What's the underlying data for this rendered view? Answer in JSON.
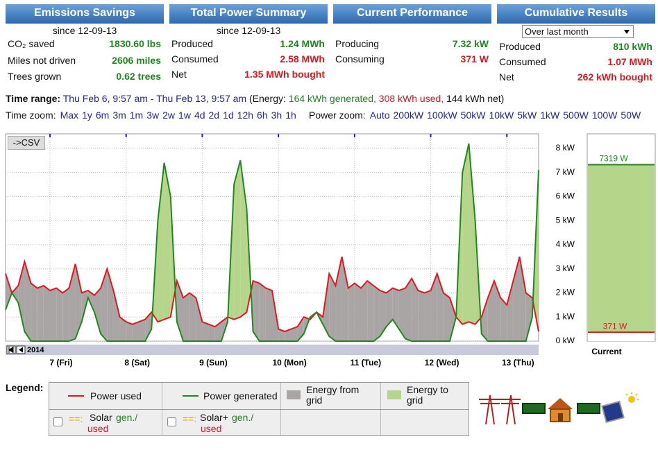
{
  "panels": [
    {
      "title": "Emissions Savings",
      "subtitle": "since 12-09-13",
      "rows": [
        {
          "label": "CO₂ saved",
          "value": "1830.60 lbs",
          "color": "#1a8a1a"
        },
        {
          "label": "Miles not driven",
          "value": "2606 miles",
          "color": "#1a8a1a"
        },
        {
          "label": "Trees grown",
          "value": "0.62 trees",
          "color": "#1a8a1a"
        }
      ]
    },
    {
      "title": "Total Power Summary",
      "subtitle": "since 12-09-13",
      "rows": [
        {
          "label": "Produced",
          "value": "1.24 MWh",
          "color": "#1a8a1a"
        },
        {
          "label": "Consumed",
          "value": "2.58 MWh",
          "color": "#e0141b"
        },
        {
          "label": "Net",
          "value": "1.35 MWh bought",
          "color": "#e0141b"
        }
      ]
    },
    {
      "title": "Current Performance",
      "rows": [
        {
          "label": "Producing",
          "value": "7.32 kW",
          "color": "#1a8a1a"
        },
        {
          "label": "Consuming",
          "value": "371 W",
          "color": "#e0141b"
        }
      ]
    },
    {
      "title": "Cumulative Results",
      "dropdown": "Over last month",
      "rows": [
        {
          "label": "Produced",
          "value": "810 kWh",
          "color": "#1a8a1a"
        },
        {
          "label": "Consumed",
          "value": "1.07 MWh",
          "color": "#e0141b"
        },
        {
          "label": "Net",
          "value": "262 kWh bought",
          "color": "#e0141b"
        }
      ]
    }
  ],
  "time_range": {
    "label": "Time range:",
    "range": "Thu Feb 6, 9:57 am - Thu Feb 13, 9:57 am",
    "energy_open": "(Energy:",
    "generated": "164 kWh generated,",
    "used": "308 kWh used,",
    "net": "144 kWh net)"
  },
  "time_zoom": {
    "label": "Time zoom:",
    "options": [
      "Max",
      "1y",
      "6m",
      "3m",
      "1m",
      "3w",
      "2w",
      "1w",
      "4d",
      "2d",
      "1d",
      "12h",
      "6h",
      "3h",
      "1h"
    ]
  },
  "power_zoom": {
    "label": "Power zoom:",
    "options": [
      "Auto",
      "200kW",
      "100kW",
      "50kW",
      "10kW",
      "5kW",
      "1kW",
      "500W",
      "100W",
      "50W"
    ]
  },
  "csv_button": "->CSV",
  "year": "2014",
  "chart_data": [
    {
      "type": "line",
      "categories": [
        null,
        null,
        null,
        null,
        null,
        null,
        null,
        "7 (Fri)",
        null,
        null,
        null,
        null,
        null,
        null,
        null,
        null,
        null,
        null,
        null,
        "8 (Sat)",
        null,
        null,
        null,
        null,
        null,
        null,
        null,
        null,
        null,
        null,
        null,
        "9 (Sun)",
        null,
        null,
        null,
        null,
        null,
        null,
        null,
        null,
        null,
        null,
        null,
        "10 (Mon)",
        null,
        null,
        null,
        null,
        null,
        null,
        null,
        null,
        null,
        null,
        null,
        "11 (Tue)",
        null,
        null,
        null,
        null,
        null,
        null,
        null,
        null,
        null,
        null,
        null,
        "12 (Wed)",
        null,
        null,
        null,
        null,
        null,
        null,
        null,
        null,
        null,
        null,
        null,
        "13 (Thu)",
        null,
        null,
        null,
        null,
        null
      ],
      "series": [
        {
          "name": "Power used",
          "color": "#e8141b",
          "values": [
            2.8,
            2.0,
            2.3,
            3.3,
            2.4,
            2.2,
            2.3,
            2.1,
            2.2,
            2.0,
            2.2,
            3.2,
            2.0,
            2.1,
            1.9,
            2.2,
            3.0,
            2.1,
            1.0,
            0.8,
            0.7,
            0.8,
            0.9,
            1.2,
            0.8,
            0.9,
            1.0,
            2.5,
            1.8,
            2.0,
            1.8,
            0.8,
            0.7,
            0.6,
            0.8,
            1.0,
            0.9,
            1.0,
            1.2,
            2.5,
            2.4,
            2.2,
            2.1,
            0.5,
            0.4,
            0.5,
            0.6,
            1.0,
            0.9,
            1.2,
            1.0,
            2.8,
            2.3,
            3.5,
            2.2,
            2.4,
            2.2,
            2.5,
            2.3,
            2.1,
            2.0,
            2.2,
            2.1,
            2.2,
            2.6,
            2.1,
            2.0,
            2.1,
            2.8,
            2.0,
            1.8,
            1.0,
            0.7,
            0.8,
            0.7,
            1.0,
            1.8,
            2.5,
            1.8,
            1.5,
            2.5,
            3.5,
            2.0,
            1.8,
            0.4
          ]
        },
        {
          "name": "Power generated",
          "color": "#1e8a1e",
          "values": [
            1.3,
            2.0,
            1.6,
            0.4,
            0,
            0,
            0,
            0,
            0,
            0,
            0,
            0.1,
            0.8,
            1.8,
            1.2,
            0.3,
            0,
            0,
            0,
            0,
            0,
            0,
            0,
            0.5,
            5.0,
            7.4,
            6.0,
            0.8,
            0,
            0,
            0,
            0,
            0,
            0,
            0,
            0.8,
            6.5,
            7.5,
            5.5,
            0.4,
            0,
            0,
            0,
            0,
            0,
            0,
            0,
            0.3,
            1.0,
            1.2,
            0.7,
            0.2,
            0,
            0,
            0,
            0,
            0,
            0,
            0,
            0.2,
            0.6,
            0.9,
            0.5,
            0.1,
            0,
            0,
            0,
            0,
            0,
            0,
            0,
            1.0,
            7.0,
            8.2,
            5.0,
            0.3,
            0,
            0,
            0,
            0,
            0,
            0,
            0,
            1.0,
            7.1
          ]
        }
      ],
      "ylim": [
        0,
        8.6
      ],
      "yticks": [
        {
          "value": 0,
          "label": "0 kW"
        },
        {
          "value": 1,
          "label": "1 kW"
        },
        {
          "value": 2,
          "label": "2 kW"
        },
        {
          "value": 3,
          "label": "3 kW"
        },
        {
          "value": 4,
          "label": "4 kW"
        },
        {
          "value": 5,
          "label": "5 kW"
        },
        {
          "value": 6,
          "label": "6 kW"
        },
        {
          "value": 7,
          "label": "7 kW"
        },
        {
          "value": 8,
          "label": "8 kW"
        }
      ],
      "grid": true
    },
    {
      "type": "bar",
      "categories": [
        "Current"
      ],
      "series": [
        {
          "name": "Power generated",
          "color": "#1e8a1e",
          "values": [
            7.319
          ],
          "value_labels": [
            "7319 W"
          ]
        },
        {
          "name": "Power used",
          "color": "#e8141b",
          "values": [
            0.371
          ],
          "value_labels": [
            "371 W"
          ]
        }
      ],
      "ylim": [
        0,
        8.6
      ]
    }
  ],
  "legend": {
    "title": "Legend:",
    "items": [
      {
        "label": "Power used",
        "color": "#e8141b"
      },
      {
        "label": "Power generated",
        "color": "#1e8a1e"
      },
      {
        "label": "Energy from grid",
        "color": "#a9a5a5"
      },
      {
        "label": "Energy to grid",
        "color": "#b5d68a"
      }
    ],
    "options": [
      {
        "marker": "==:",
        "name": "Solar",
        "gen": "gen./",
        "used": "used"
      },
      {
        "marker": "==:",
        "name": "Solar+",
        "gen": "gen./",
        "used": "used"
      }
    ]
  }
}
